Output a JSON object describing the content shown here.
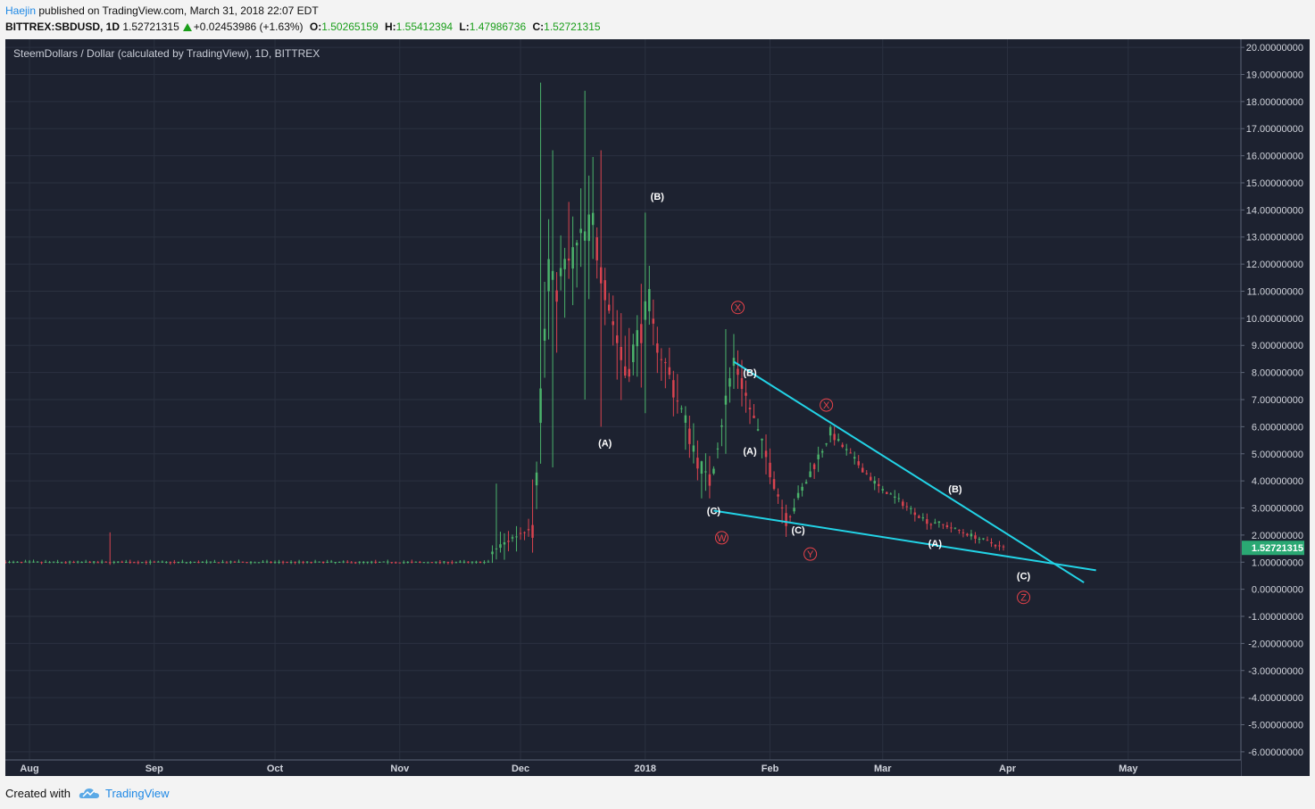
{
  "header": {
    "author": "Haejin",
    "published_text": "published on TradingView.com, March 31, 2018 22:07 EDT",
    "symbol": "BITTREX:SBDUSD, 1D",
    "last": "1.52721315",
    "change": "+0.02453986 (+1.63%)",
    "open_label": "O:",
    "open": "1.50265159",
    "high_label": "H:",
    "high": "1.55412394",
    "low_label": "L:",
    "low": "1.47986736",
    "close_label": "C:",
    "close": "1.52721315"
  },
  "chart_title": "SteemDollars / Dollar (calculated by TradingView), 1D, BITTREX",
  "footer": {
    "created_with": "Created with",
    "brand": "TradingView"
  },
  "colors": {
    "background": "#1d2230",
    "grid": "#2b3140",
    "up": "#4bb36b",
    "down": "#d9434f",
    "trendline": "#22d3e6",
    "price_tag": "#2aa873",
    "label_white": "#ffffff",
    "label_red": "#e8434a"
  },
  "chart_data": {
    "type": "candlestick",
    "ylim": [
      -6.3,
      20.3
    ],
    "yticks": [
      "20.00000000",
      "19.00000000",
      "18.00000000",
      "17.00000000",
      "16.00000000",
      "15.00000000",
      "14.00000000",
      "13.00000000",
      "12.00000000",
      "11.00000000",
      "10.00000000",
      "9.00000000",
      "8.00000000",
      "7.00000000",
      "6.00000000",
      "5.00000000",
      "4.00000000",
      "3.00000000",
      "2.00000000",
      "1.00000000",
      "0.00000000",
      "-1.00000000",
      "-2.00000000",
      "-3.00000000",
      "-4.00000000",
      "-5.00000000",
      "-6.00000000"
    ],
    "ytick_values": [
      20,
      19,
      18,
      17,
      16,
      15,
      14,
      13,
      12,
      11,
      10,
      9,
      8,
      7,
      6,
      5,
      4,
      3,
      2,
      1,
      0,
      -1,
      -2,
      -3,
      -4,
      -5,
      -6
    ],
    "xticks": [
      {
        "label": "Aug",
        "date": "2017-08-01"
      },
      {
        "label": "Sep",
        "date": "2017-09-01"
      },
      {
        "label": "Oct",
        "date": "2017-10-01"
      },
      {
        "label": "Nov",
        "date": "2017-11-01"
      },
      {
        "label": "Dec",
        "date": "2017-12-01"
      },
      {
        "label": "2018",
        "date": "2018-01-01"
      },
      {
        "label": "Feb",
        "date": "2018-02-01"
      },
      {
        "label": "Mar",
        "date": "2018-03-01"
      },
      {
        "label": "Apr",
        "date": "2018-04-01"
      },
      {
        "label": "May",
        "date": "2018-05-01"
      }
    ],
    "xlim": [
      "2017-07-26",
      "2018-05-29"
    ],
    "last_price": "1.52721315",
    "segments": [
      {
        "from": "2017-07-26",
        "to": "2017-11-23",
        "start": 1.0,
        "end": 1.0,
        "noise": 0.05,
        "wick": 0.08
      },
      {
        "from": "2017-11-24",
        "to": "2017-12-03",
        "start": 1.4,
        "end": 2.3,
        "noise": 0.3,
        "wick": 0.6
      },
      {
        "from": "2017-12-04",
        "to": "2017-12-08",
        "start": 2.5,
        "end": 12.0,
        "noise": 1.5,
        "wick": 2.0
      },
      {
        "from": "2017-12-09",
        "to": "2017-12-19",
        "start": 11.0,
        "end": 13.5,
        "noise": 1.6,
        "wick": 2.2
      },
      {
        "from": "2017-12-20",
        "to": "2017-12-26",
        "start": 12.5,
        "end": 8.5,
        "noise": 1.2,
        "wick": 1.5
      },
      {
        "from": "2017-12-27",
        "to": "2018-01-02",
        "start": 8.0,
        "end": 10.5,
        "noise": 1.2,
        "wick": 1.8
      },
      {
        "from": "2018-01-03",
        "to": "2018-01-16",
        "start": 9.5,
        "end": 4.0,
        "noise": 0.9,
        "wick": 1.0
      },
      {
        "from": "2018-01-17",
        "to": "2018-01-23",
        "start": 4.0,
        "end": 8.5,
        "noise": 0.8,
        "wick": 1.0
      },
      {
        "from": "2018-01-24",
        "to": "2018-02-05",
        "start": 8.0,
        "end": 2.6,
        "noise": 0.6,
        "wick": 0.7
      },
      {
        "from": "2018-02-06",
        "to": "2018-02-16",
        "start": 2.8,
        "end": 5.8,
        "noise": 0.4,
        "wick": 0.5
      },
      {
        "from": "2018-02-17",
        "to": "2018-03-01",
        "start": 5.6,
        "end": 3.6,
        "noise": 0.25,
        "wick": 0.3
      },
      {
        "from": "2018-03-02",
        "to": "2018-03-13",
        "start": 3.6,
        "end": 2.4,
        "noise": 0.2,
        "wick": 0.25
      },
      {
        "from": "2018-03-14",
        "to": "2018-03-31",
        "start": 2.5,
        "end": 1.53,
        "noise": 0.15,
        "wick": 0.2
      }
    ],
    "spikes": [
      {
        "date": "2017-08-21",
        "high": 2.1,
        "low": 0.9
      },
      {
        "date": "2017-11-25",
        "high": 3.9,
        "low": 1.1
      },
      {
        "date": "2017-12-06",
        "high": 18.7,
        "low": 8.0
      },
      {
        "date": "2017-12-09",
        "high": 16.2,
        "low": 4.5
      },
      {
        "date": "2017-12-17",
        "high": 18.4,
        "low": 7.0
      },
      {
        "date": "2017-12-21",
        "high": 16.2,
        "low": 6.0
      },
      {
        "date": "2018-01-01",
        "high": 13.9,
        "low": 6.5
      },
      {
        "date": "2018-01-21",
        "high": 9.6,
        "low": 5.0
      }
    ],
    "trendlines": [
      {
        "name": "upper",
        "from": {
          "date": "2018-01-23",
          "price": 8.4
        },
        "to": {
          "date": "2018-04-20",
          "price": 0.25
        }
      },
      {
        "name": "lower",
        "from": {
          "date": "2018-01-18",
          "price": 2.9
        },
        "to": {
          "date": "2018-04-23",
          "price": 0.7
        }
      }
    ],
    "annotations": [
      {
        "text": "(B)",
        "date": "2018-01-04",
        "price": 14.5,
        "style": "white"
      },
      {
        "text": "(A)",
        "date": "2017-12-22",
        "price": 5.4,
        "style": "white"
      },
      {
        "text": "X",
        "date": "2018-01-24",
        "price": 10.4,
        "style": "red-circle"
      },
      {
        "text": "(B)",
        "date": "2018-01-27",
        "price": 8.0,
        "style": "white"
      },
      {
        "text": "(A)",
        "date": "2018-01-27",
        "price": 5.1,
        "style": "white"
      },
      {
        "text": "(C)",
        "date": "2018-01-18",
        "price": 2.9,
        "style": "white"
      },
      {
        "text": "W",
        "date": "2018-01-20",
        "price": 1.9,
        "style": "red-circle"
      },
      {
        "text": "X",
        "date": "2018-02-15",
        "price": 6.8,
        "style": "red-circle"
      },
      {
        "text": "(C)",
        "date": "2018-02-08",
        "price": 2.2,
        "style": "white"
      },
      {
        "text": "Y",
        "date": "2018-02-11",
        "price": 1.3,
        "style": "red-circle"
      },
      {
        "text": "(B)",
        "date": "2018-03-19",
        "price": 3.7,
        "style": "white"
      },
      {
        "text": "(A)",
        "date": "2018-03-14",
        "price": 1.7,
        "style": "white"
      },
      {
        "text": "(C)",
        "date": "2018-04-05",
        "price": 0.5,
        "style": "white"
      },
      {
        "text": "Z",
        "date": "2018-04-05",
        "price": -0.3,
        "style": "red-circle"
      }
    ]
  }
}
